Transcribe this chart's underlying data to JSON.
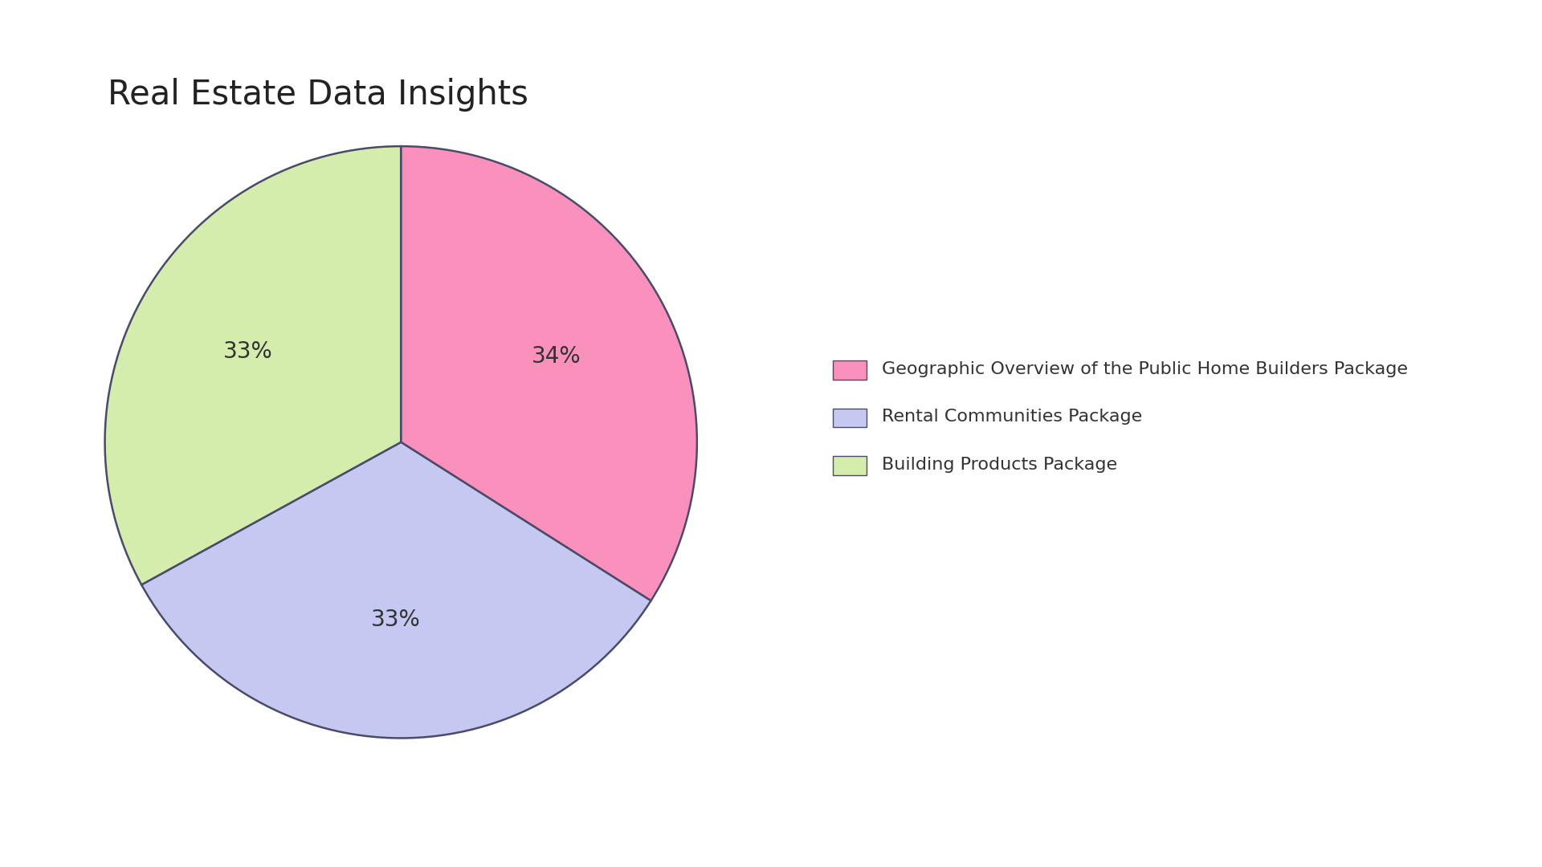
{
  "title": "Real Estate Data Insights",
  "labels": [
    "Geographic Overview of the Public Home Builders Package",
    "Rental Communities Package",
    "Building Products Package"
  ],
  "values": [
    34,
    33,
    33
  ],
  "colors": [
    "#F991BC",
    "#C5C8F0",
    "#D4EDAC"
  ],
  "edge_color": "#4a4a6a",
  "edge_width": 1.8,
  "pct_labels": [
    "34%",
    "33%",
    "33%"
  ],
  "title_fontsize": 30,
  "pct_fontsize": 20,
  "legend_fontsize": 16,
  "background_color": "#ffffff",
  "start_angle": 90
}
